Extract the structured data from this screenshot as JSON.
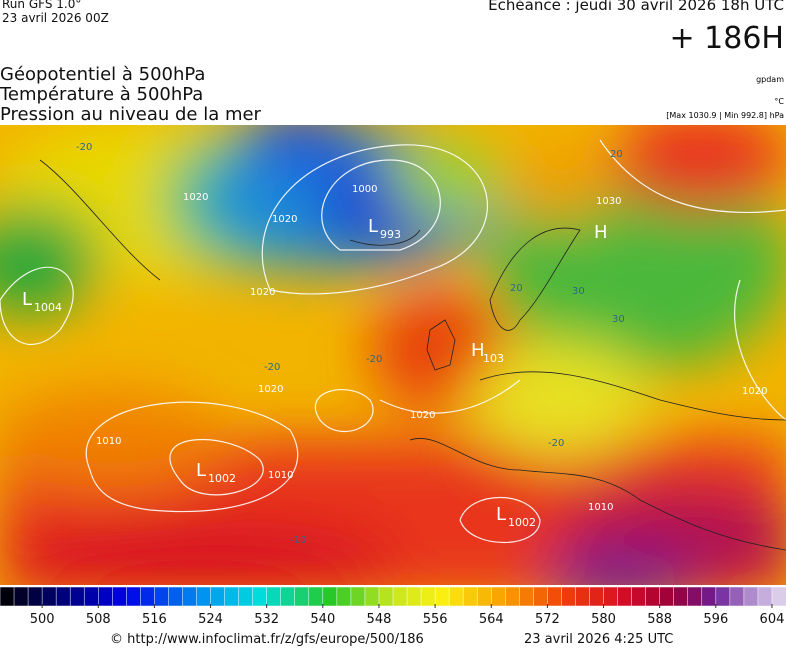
{
  "header": {
    "run": "Run GFS 1.0°",
    "run_date": "23 avril 2026 00Z",
    "valid": "Echéance : jeudi 30 avril 2026 18h UTC",
    "lead": "+ 186H"
  },
  "titles": [
    "Géopotentiel à 500hPa",
    "Température à 500hPa",
    "Pression au niveau de la mer"
  ],
  "units": [
    "gpdam",
    "°C",
    "[Max 1030.9 | Min 992.8] hPa"
  ],
  "centers": [
    {
      "symbol": "L",
      "value": "1004"
    },
    {
      "symbol": "L",
      "value": "993"
    },
    {
      "symbol": "L",
      "value": "1002"
    },
    {
      "symbol": "L",
      "value": "1002"
    },
    {
      "symbol": "H",
      "value": "103"
    },
    {
      "symbol": "H"
    }
  ],
  "contour_labels": [
    "1020",
    "1020",
    "1000",
    "1020",
    "1020",
    "1020",
    "1010",
    "1010",
    "1010",
    "1020",
    "1030",
    "20",
    "-20",
    "-20",
    "-20",
    "-20",
    "-10",
    "30",
    "30",
    "20"
  ],
  "colorbar": {
    "range": [
      494,
      606
    ],
    "ticks": [
      500,
      508,
      516,
      524,
      532,
      540,
      548,
      556,
      564,
      572,
      580,
      588,
      596,
      604
    ]
  },
  "footer": {
    "url": "© http://www.infoclimat.fr/z/gfs/europe/500/186",
    "generated": "23 avril 2026  4:25 UTC"
  }
}
